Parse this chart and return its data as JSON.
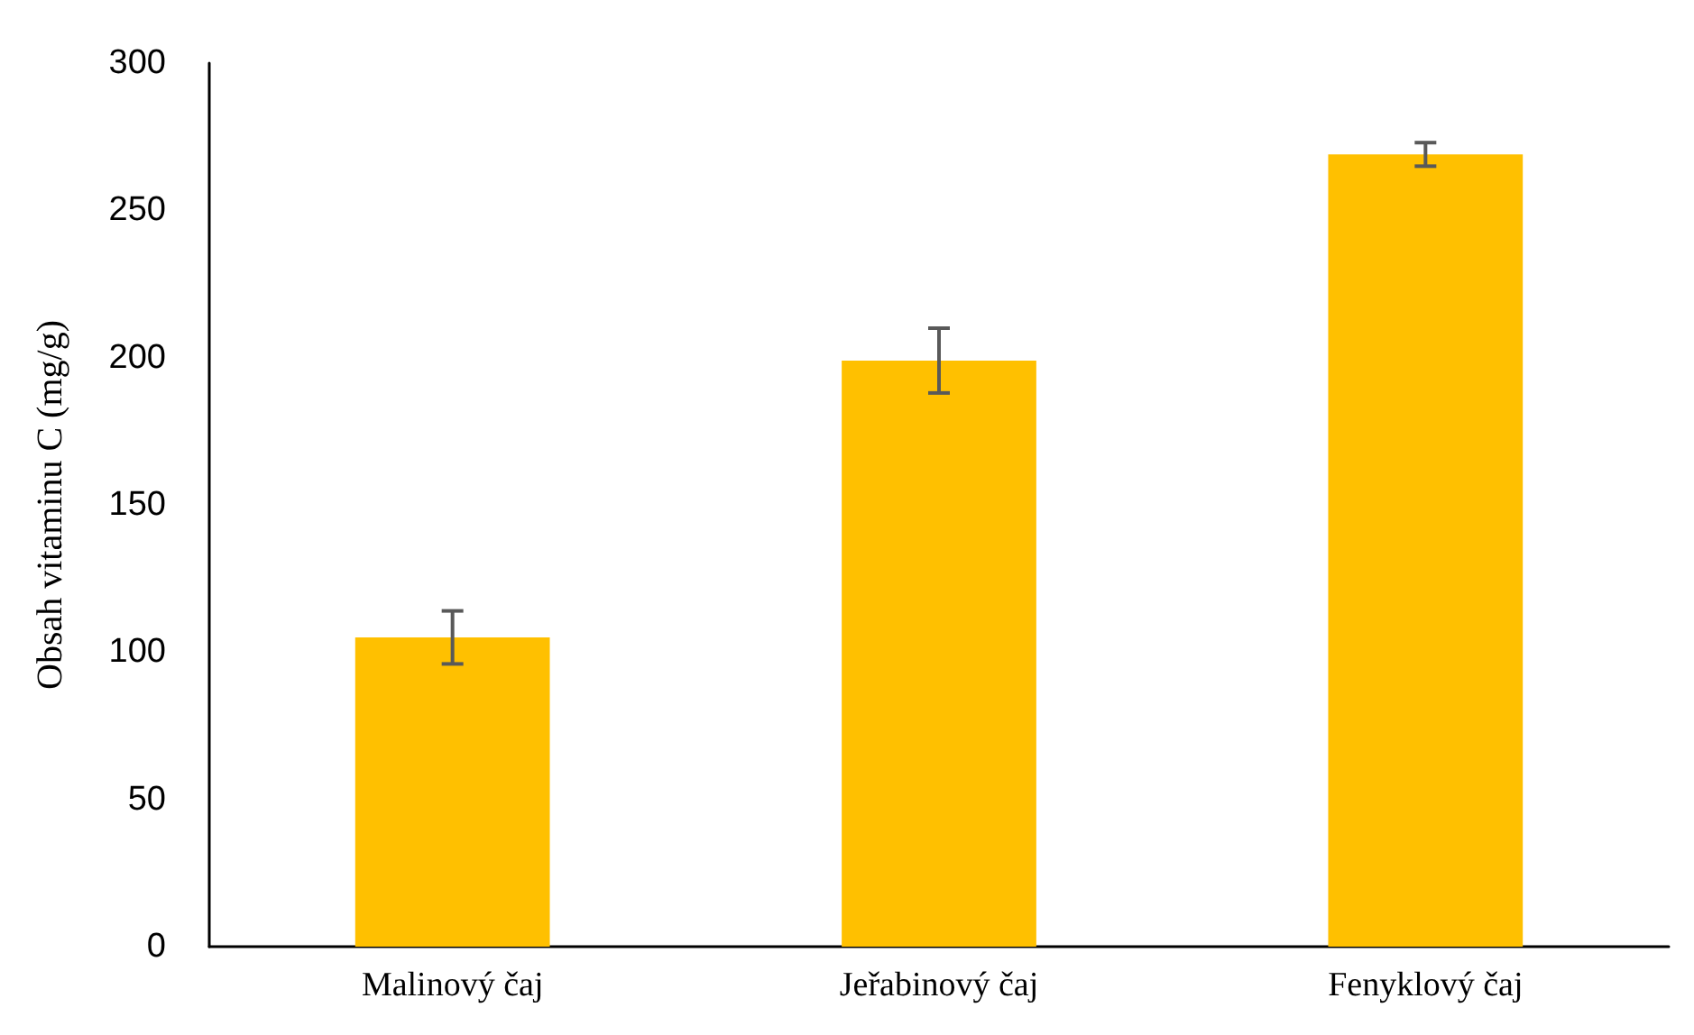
{
  "chart_data": {
    "type": "bar",
    "ylabel": "Obsah vitaminu C (mg/g)",
    "categories": [
      "Malinový čaj",
      "Jeřabinový čaj",
      "Fenyklový čaj"
    ],
    "values": [
      105,
      199,
      269
    ],
    "errors": [
      9,
      11,
      4
    ],
    "color": "#ffc000",
    "ylim": [
      0,
      300
    ],
    "yticks": [
      0,
      50,
      100,
      150,
      200,
      250,
      300
    ],
    "grid": false
  }
}
